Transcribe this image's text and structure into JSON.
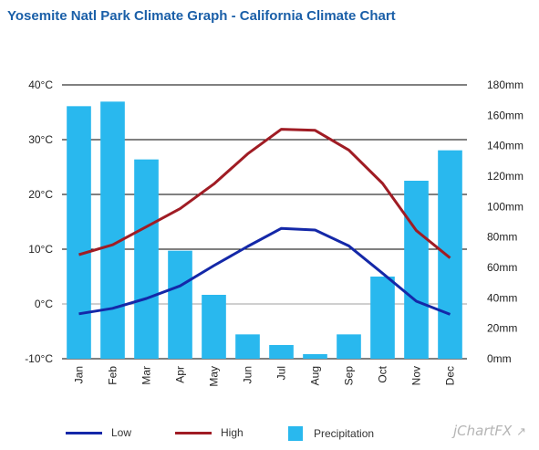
{
  "title": "Yosemite Natl Park Climate Graph - California Climate Chart",
  "brand": "jChartFX",
  "legend": {
    "low": "Low",
    "high": "High",
    "precip": "Precipitation"
  },
  "colors": {
    "low": "#1428a8",
    "high": "#a01c24",
    "precip": "#29b8ee",
    "title": "#1a5fa8"
  },
  "chart_data": {
    "type": "bar",
    "title": "Yosemite Natl Park Climate Graph - California Climate Chart",
    "categories": [
      "Jan",
      "Feb",
      "Mar",
      "Apr",
      "May",
      "Jun",
      "Jul",
      "Aug",
      "Sep",
      "Oct",
      "Nov",
      "Dec"
    ],
    "y_left": {
      "ticks": [
        "-10°C",
        "0°C",
        "10°C",
        "20°C",
        "30°C",
        "40°C"
      ],
      "range": [
        -10,
        40
      ],
      "unit": "°C"
    },
    "y_right": {
      "ticks": [
        "0mm",
        "20mm",
        "40mm",
        "60mm",
        "80mm",
        "100mm",
        "120mm",
        "140mm",
        "160mm",
        "180mm"
      ],
      "range": [
        0,
        180
      ],
      "unit": "mm"
    },
    "grid": true,
    "legend_position": "bottom",
    "series": [
      {
        "name": "Precipitation",
        "type": "bar",
        "axis": "right",
        "values": [
          166,
          169,
          131,
          71,
          42,
          16,
          9,
          3,
          16,
          54,
          117,
          137
        ]
      },
      {
        "name": "Low",
        "type": "line",
        "axis": "left",
        "values": [
          -1.8,
          -0.8,
          1.0,
          3.3,
          7.0,
          10.5,
          13.8,
          13.5,
          10.6,
          5.6,
          0.5,
          -1.9
        ]
      },
      {
        "name": "High",
        "type": "line",
        "axis": "left",
        "values": [
          9.0,
          10.8,
          14.1,
          17.4,
          21.9,
          27.4,
          31.9,
          31.7,
          28.1,
          22.0,
          13.4,
          8.4
        ]
      }
    ]
  }
}
